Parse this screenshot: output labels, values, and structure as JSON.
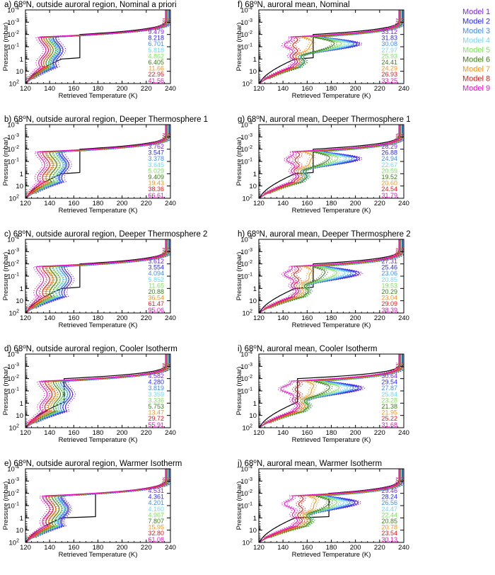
{
  "legend": [
    {
      "name": "Model 1",
      "color": "#7a2bd9"
    },
    {
      "name": "Model 2",
      "color": "#2a2aee"
    },
    {
      "name": "Model 3",
      "color": "#3f8ff0"
    },
    {
      "name": "Model 4",
      "color": "#74d8f6"
    },
    {
      "name": "Model 5",
      "color": "#7ee35d"
    },
    {
      "name": "Model 6",
      "color": "#3f7d1e"
    },
    {
      "name": "Model 7",
      "color": "#f0961f"
    },
    {
      "name": "Model 8",
      "color": "#dd1e1e"
    },
    {
      "name": "Model 9",
      "color": "#e316c5"
    }
  ],
  "axis": {
    "xlabel": "Retrieved Temperature (K)",
    "ylabel": "Pressure (mbar)",
    "xlim": [
      120,
      240
    ],
    "xticks": [
      "120",
      "140",
      "160",
      "180",
      "200",
      "220",
      "240"
    ],
    "yticks": [
      {
        "base": "10",
        "exp": "-4"
      },
      {
        "base": "10",
        "exp": "-3"
      },
      {
        "base": "10",
        "exp": "-2"
      },
      {
        "base": "10",
        "exp": "-1"
      },
      {
        "base": "1",
        "exp": ""
      },
      {
        "base": "10",
        "exp": ""
      },
      {
        "base": "10",
        "exp": "2"
      }
    ]
  },
  "chart_data": [
    {
      "type": "line",
      "id": "a",
      "title_prefix": "a) 68",
      "title_suffix": "N, outside auroral region, Nominal a priori",
      "apriori": {
        "base": 165,
        "low": 0
      },
      "series": [
        {
          "name": "Model 1",
          "chi2": "9.479",
          "t_min": 147,
          "t_peak": 148
        },
        {
          "name": "Model 2",
          "chi2": "8.218",
          "t_min": 145,
          "t_peak": 146
        },
        {
          "name": "Model 3",
          "chi2": "6.701",
          "t_min": 144,
          "t_peak": 145
        },
        {
          "name": "Model 4",
          "chi2": "5.818",
          "t_min": 142,
          "t_peak": 143
        },
        {
          "name": "Model 5",
          "chi2": "4.862",
          "t_min": 141,
          "t_peak": 142
        },
        {
          "name": "Model 6",
          "chi2": "6.405",
          "t_min": 140,
          "t_peak": 140
        },
        {
          "name": "Model 7",
          "chi2": "11.66",
          "t_min": 138,
          "t_peak": 138
        },
        {
          "name": "Model 8",
          "chi2": "22.95",
          "t_min": 137,
          "t_peak": 136
        },
        {
          "name": "Model 9",
          "chi2": "41.56",
          "t_min": 133,
          "t_peak": 134
        }
      ]
    },
    {
      "type": "line",
      "id": "f",
      "title_prefix": "f) 68",
      "title_suffix": "N, auroral mean, Nominal",
      "apriori": {
        "base": 165,
        "low": 0
      },
      "series": [
        {
          "name": "Model 1",
          "chi2": "33.12",
          "t_min": 155,
          "t_peak": 205
        },
        {
          "name": "Model 2",
          "chi2": "31.83",
          "t_min": 155,
          "t_peak": 203
        },
        {
          "name": "Model 3",
          "chi2": "30.08",
          "t_min": 155,
          "t_peak": 200
        },
        {
          "name": "Model 4",
          "chi2": "27.97",
          "t_min": 155,
          "t_peak": 196
        },
        {
          "name": "Model 5",
          "chi2": "25.93",
          "t_min": 156,
          "t_peak": 190
        },
        {
          "name": "Model 6",
          "chi2": "24.41",
          "t_min": 156,
          "t_peak": 184
        },
        {
          "name": "Model 7",
          "chi2": "24.29",
          "t_min": 152,
          "t_peak": 165
        },
        {
          "name": "Model 8",
          "chi2": "26.93",
          "t_min": 150,
          "t_peak": 150
        },
        {
          "name": "Model 9",
          "chi2": "33.25",
          "t_min": 148,
          "t_peak": 143
        }
      ]
    },
    {
      "type": "line",
      "id": "b",
      "title_prefix": "b) 68",
      "title_suffix": "N, outside auroral region, Deeper Thermosphere 1",
      "apriori": {
        "base": 165,
        "low": 0
      },
      "series": [
        {
          "name": "Model 1",
          "chi2": "3.762",
          "t_min": 153,
          "t_peak": 153
        },
        {
          "name": "Model 2",
          "chi2": "3.547",
          "t_min": 151,
          "t_peak": 151
        },
        {
          "name": "Model 3",
          "chi2": "3.378",
          "t_min": 150,
          "t_peak": 150
        },
        {
          "name": "Model 4",
          "chi2": "3.645",
          "t_min": 148,
          "t_peak": 148
        },
        {
          "name": "Model 5",
          "chi2": "5.029",
          "t_min": 146,
          "t_peak": 146
        },
        {
          "name": "Model 6",
          "chi2": "9.409",
          "t_min": 143,
          "t_peak": 143
        },
        {
          "name": "Model 7",
          "chi2": "19.43",
          "t_min": 140,
          "t_peak": 140
        },
        {
          "name": "Model 8",
          "chi2": "38.36",
          "t_min": 137,
          "t_peak": 137
        },
        {
          "name": "Model 9",
          "chi2": "66.61",
          "t_min": 133,
          "t_peak": 133
        }
      ]
    },
    {
      "type": "line",
      "id": "g",
      "title_prefix": "g) 68",
      "title_suffix": "N, auroral mean, Deeper Thermosphere 1",
      "apriori": {
        "base": 165,
        "low": 0
      },
      "series": [
        {
          "name": "Model 1",
          "chi2": "28.29",
          "t_min": 157,
          "t_peak": 205
        },
        {
          "name": "Model 2",
          "chi2": "26.88",
          "t_min": 157,
          "t_peak": 203
        },
        {
          "name": "Model 3",
          "chi2": "24.94",
          "t_min": 157,
          "t_peak": 199
        },
        {
          "name": "Model 4",
          "chi2": "22.67",
          "t_min": 157,
          "t_peak": 194
        },
        {
          "name": "Model 5",
          "chi2": "20.59",
          "t_min": 158,
          "t_peak": 187
        },
        {
          "name": "Model 6",
          "chi2": "19.52",
          "t_min": 158,
          "t_peak": 180
        },
        {
          "name": "Model 7",
          "chi2": "20.60",
          "t_min": 154,
          "t_peak": 165
        },
        {
          "name": "Model 8",
          "chi2": "24.54",
          "t_min": 151,
          "t_peak": 152
        },
        {
          "name": "Model 9",
          "chi2": "31.79",
          "t_min": 149,
          "t_peak": 145
        }
      ]
    },
    {
      "type": "line",
      "id": "c",
      "title_prefix": "c) 68",
      "title_suffix": "N, outside auroral region, Deeper Thermosphere 2",
      "apriori": {
        "base": 165,
        "low": 0
      },
      "series": [
        {
          "name": "Model 1",
          "chi2": "3.612",
          "t_min": 155,
          "t_peak": 155
        },
        {
          "name": "Model 2",
          "chi2": "3.554",
          "t_min": 153,
          "t_peak": 153
        },
        {
          "name": "Model 3",
          "chi2": "4.094",
          "t_min": 151,
          "t_peak": 151
        },
        {
          "name": "Model 4",
          "chi2": "5.852",
          "t_min": 148,
          "t_peak": 148
        },
        {
          "name": "Model 5",
          "chi2": "11.65",
          "t_min": 146,
          "t_peak": 146
        },
        {
          "name": "Model 6",
          "chi2": "20.88",
          "t_min": 143,
          "t_peak": 143
        },
        {
          "name": "Model 7",
          "chi2": "36.54",
          "t_min": 140,
          "t_peak": 140
        },
        {
          "name": "Model 8",
          "chi2": "61.47",
          "t_min": 137,
          "t_peak": 137
        },
        {
          "name": "Model 9",
          "chi2": "95.06",
          "t_min": 132,
          "t_peak": 132
        }
      ]
    },
    {
      "type": "line",
      "id": "h",
      "title_prefix": "h) 68",
      "title_suffix": "N, auroral mean, Deeper Thermosphere 2",
      "apriori": {
        "base": 165,
        "low": 0
      },
      "series": [
        {
          "name": "Model 1",
          "chi2": "27.31",
          "t_min": 160,
          "t_peak": 205
        },
        {
          "name": "Model 2",
          "chi2": "25.46",
          "t_min": 160,
          "t_peak": 202
        },
        {
          "name": "Model 3",
          "chi2": "23.06",
          "t_min": 160,
          "t_peak": 198
        },
        {
          "name": "Model 4",
          "chi2": "20.85",
          "t_min": 160,
          "t_peak": 193
        },
        {
          "name": "Model 5",
          "chi2": "19.53",
          "t_min": 160,
          "t_peak": 186
        },
        {
          "name": "Model 6",
          "chi2": "20.29",
          "t_min": 159,
          "t_peak": 176
        },
        {
          "name": "Model 7",
          "chi2": "23.04",
          "t_min": 155,
          "t_peak": 164
        },
        {
          "name": "Model 8",
          "chi2": "29.09",
          "t_min": 151,
          "t_peak": 151
        },
        {
          "name": "Model 9",
          "chi2": "38.39",
          "t_min": 149,
          "t_peak": 143
        }
      ]
    },
    {
      "type": "line",
      "id": "d",
      "title_prefix": "d) 68",
      "title_suffix": "N, outside auroral region, Cooler Isotherm",
      "apriori": {
        "base": 152,
        "low": 0
      },
      "series": [
        {
          "name": "Model 1",
          "chi2": "4.582",
          "t_min": 156,
          "t_peak": 156
        },
        {
          "name": "Model 2",
          "chi2": "4.280",
          "t_min": 154,
          "t_peak": 154
        },
        {
          "name": "Model 3",
          "chi2": "3.819",
          "t_min": 152,
          "t_peak": 152
        },
        {
          "name": "Model 4",
          "chi2": "3.359",
          "t_min": 150,
          "t_peak": 150
        },
        {
          "name": "Model 5",
          "chi2": "3.336",
          "t_min": 148,
          "t_peak": 148
        },
        {
          "name": "Model 6",
          "chi2": "5.753",
          "t_min": 146,
          "t_peak": 146
        },
        {
          "name": "Model 7",
          "chi2": "13.47",
          "t_min": 142,
          "t_peak": 142
        },
        {
          "name": "Model 8",
          "chi2": "29.72",
          "t_min": 139,
          "t_peak": 139
        },
        {
          "name": "Model 9",
          "chi2": "55.91",
          "t_min": 135,
          "t_peak": 135
        }
      ]
    },
    {
      "type": "line",
      "id": "i",
      "title_prefix": "i) 68",
      "title_suffix": "N, auroral mean, Cooler Isotherm",
      "apriori": {
        "base": 152,
        "low": 0
      },
      "series": [
        {
          "name": "Model 1",
          "chi2": "30.64",
          "t_min": 160,
          "t_peak": 207
        },
        {
          "name": "Model 2",
          "chi2": "29.54",
          "t_min": 160,
          "t_peak": 204
        },
        {
          "name": "Model 3",
          "chi2": "27.87",
          "t_min": 160,
          "t_peak": 200
        },
        {
          "name": "Model 4",
          "chi2": "25.84",
          "t_min": 160,
          "t_peak": 195
        },
        {
          "name": "Model 5",
          "chi2": "23.28",
          "t_min": 160,
          "t_peak": 188
        },
        {
          "name": "Model 6",
          "chi2": "21.38",
          "t_min": 159,
          "t_peak": 180
        },
        {
          "name": "Model 7",
          "chi2": "21.95",
          "t_min": 156,
          "t_peak": 166
        },
        {
          "name": "Model 8",
          "chi2": "25.22",
          "t_min": 152,
          "t_peak": 152
        },
        {
          "name": "Model 9",
          "chi2": "31.68",
          "t_min": 150,
          "t_peak": 140
        }
      ]
    },
    {
      "type": "line",
      "id": "e",
      "title_prefix": "e) 68",
      "title_suffix": "N, outside auroral region, Warmer Isotherm",
      "apriori": {
        "base": 178,
        "low": 0
      },
      "series": [
        {
          "name": "Model 1",
          "chi2": "4.531",
          "t_min": 153,
          "t_peak": 153
        },
        {
          "name": "Model 2",
          "chi2": "4.361",
          "t_min": 152,
          "t_peak": 152
        },
        {
          "name": "Model 3",
          "chi2": "4.201",
          "t_min": 150,
          "t_peak": 150
        },
        {
          "name": "Model 4",
          "chi2": "4.160",
          "t_min": 149,
          "t_peak": 149
        },
        {
          "name": "Model 5",
          "chi2": "4.967",
          "t_min": 147,
          "t_peak": 147
        },
        {
          "name": "Model 6",
          "chi2": "7.807",
          "t_min": 145,
          "t_peak": 145
        },
        {
          "name": "Model 7",
          "chi2": "15.95",
          "t_min": 142,
          "t_peak": 142
        },
        {
          "name": "Model 8",
          "chi2": "32.80",
          "t_min": 140,
          "t_peak": 140
        },
        {
          "name": "Model 9",
          "chi2": "61.08",
          "t_min": 137,
          "t_peak": 137
        }
      ]
    },
    {
      "type": "line",
      "id": "j",
      "title_prefix": "j) 68",
      "title_suffix": "N, auroral mean, Warmer Isotherm",
      "apriori": {
        "base": 178,
        "low": 0
      },
      "series": [
        {
          "name": "Model 1",
          "chi2": "29.46",
          "t_min": 162,
          "t_peak": 204
        },
        {
          "name": "Model 2",
          "chi2": "28.24",
          "t_min": 162,
          "t_peak": 201
        },
        {
          "name": "Model 3",
          "chi2": "26.56",
          "t_min": 162,
          "t_peak": 197
        },
        {
          "name": "Model 4",
          "chi2": "24.47",
          "t_min": 162,
          "t_peak": 192
        },
        {
          "name": "Model 5",
          "chi2": "22.44",
          "t_min": 162,
          "t_peak": 186
        },
        {
          "name": "Model 6",
          "chi2": "20.85",
          "t_min": 161,
          "t_peak": 180
        },
        {
          "name": "Model 7",
          "chi2": "20.78",
          "t_min": 158,
          "t_peak": 168
        },
        {
          "name": "Model 8",
          "chi2": "23.54",
          "t_min": 154,
          "t_peak": 155
        },
        {
          "name": "Model 9",
          "chi2": "30.13",
          "t_min": 150,
          "t_peak": 143
        }
      ]
    }
  ]
}
